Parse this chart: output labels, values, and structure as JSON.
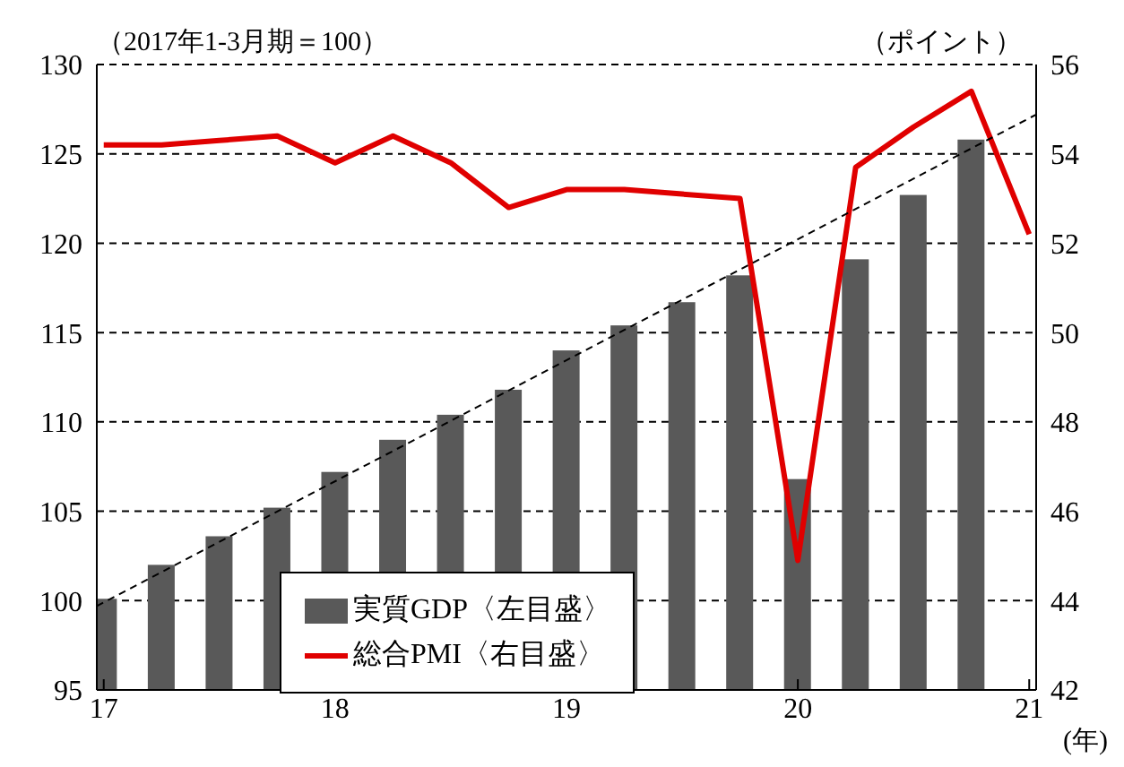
{
  "chart_data": {
    "type": "bar",
    "ylabel": "（2017年1-3月期＝100）",
    "y2label": "（ポイント）",
    "xlabel": "(年)",
    "xlim": [
      2016.97,
      2021.03
    ],
    "xticks": [
      {
        "value": 2017,
        "label": "17"
      },
      {
        "value": 2018,
        "label": "18"
      },
      {
        "value": 2019,
        "label": "19"
      },
      {
        "value": 2020,
        "label": "20"
      },
      {
        "value": 2021,
        "label": "21"
      }
    ],
    "ylim": [
      95,
      130
    ],
    "yticks": [
      95,
      100,
      105,
      110,
      115,
      120,
      125,
      130
    ],
    "y2lim": [
      42,
      56
    ],
    "y2ticks": [
      42,
      44,
      46,
      48,
      50,
      52,
      54,
      56
    ],
    "grid": "y",
    "legend": "bottom left",
    "marker": "none",
    "series": [
      {
        "name": "実質GDP〈左目盛〉",
        "color": "#595959",
        "x": [
          2017,
          2017.25,
          2017.5,
          2017.75,
          2018,
          2018.25,
          2018.5,
          2018.75,
          2019,
          2019.25,
          2019.5,
          2019.75,
          2020,
          2020.25,
          2020.5,
          2020.75
        ],
        "values": [
          100.1,
          102.0,
          103.6,
          105.2,
          107.2,
          109.0,
          110.4,
          111.8,
          114.0,
          115.4,
          116.7,
          118.2,
          106.8,
          119.1,
          122.7,
          125.8
        ]
      },
      {
        "name": "総合PMI〈右目盛〉",
        "type": "line",
        "axis": "y2",
        "color": "#e00000",
        "x": [
          2017,
          2017.25,
          2017.5,
          2017.75,
          2018,
          2018.25,
          2018.5,
          2018.75,
          2019,
          2019.25,
          2019.5,
          2019.75,
          2020,
          2020.25,
          2020.5,
          2020.75,
          2021
        ],
        "values": [
          54.2,
          54.2,
          54.3,
          54.4,
          53.8,
          54.4,
          53.8,
          52.8,
          53.2,
          53.2,
          53.1,
          53.0,
          44.9,
          53.7,
          54.6,
          55.4,
          52.2
        ]
      },
      {
        "type": "line",
        "color": "#000000",
        "line_style": "dashed",
        "x": [
          2016.97,
          2021.03
        ],
        "values": [
          99.7,
          127.2
        ]
      }
    ]
  }
}
